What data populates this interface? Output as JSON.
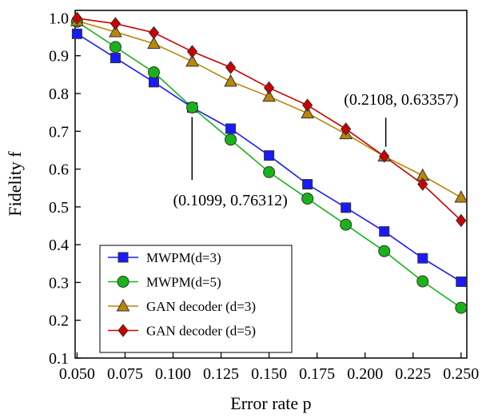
{
  "chart_data": {
    "type": "line",
    "xlabel": "Error rate p",
    "ylabel": "Fidelity f",
    "xlim": [
      0.049,
      0.253
    ],
    "ylim": [
      0.1,
      1.02
    ],
    "xticks": [
      0.05,
      0.075,
      0.1,
      0.125,
      0.15,
      0.175,
      0.2,
      0.225,
      0.25
    ],
    "xtick_labels": [
      "0.050",
      "0.075",
      "0.100",
      "0.125",
      "0.150",
      "0.175",
      "0.200",
      "0.225",
      "0.250"
    ],
    "yticks": [
      0.1,
      0.2,
      0.3,
      0.4,
      0.5,
      0.6,
      0.7,
      0.8,
      0.9,
      1.0
    ],
    "ytick_labels": [
      "0.1",
      "0.2",
      "0.3",
      "0.4",
      "0.5",
      "0.6",
      "0.7",
      "0.8",
      "0.9",
      "1.0"
    ],
    "grid": false,
    "legend_position": "bottom-left",
    "x": [
      0.05,
      0.07,
      0.09,
      0.11,
      0.13,
      0.15,
      0.17,
      0.19,
      0.21,
      0.23,
      0.25
    ],
    "series": [
      {
        "name": "MWPM(d=3)",
        "color": "#1a1aff",
        "marker": "square",
        "values": [
          0.958,
          0.894,
          0.83,
          0.763,
          0.707,
          0.636,
          0.56,
          0.498,
          0.435,
          0.364,
          0.302
        ]
      },
      {
        "name": "MWPM(d=5)",
        "color": "#19b319",
        "marker": "circle",
        "values": [
          0.99,
          0.923,
          0.856,
          0.763,
          0.678,
          0.592,
          0.522,
          0.453,
          0.383,
          0.303,
          0.233
        ]
      },
      {
        "name": "GAN decoder (d=3)",
        "color": "#b8860b",
        "marker": "triangle",
        "values": [
          0.992,
          0.963,
          0.932,
          0.885,
          0.832,
          0.792,
          0.748,
          0.693,
          0.634,
          0.583,
          0.525
        ]
      },
      {
        "name": "GAN decoder (d=5)",
        "color": "#cc0000",
        "marker": "diamond",
        "values": [
          0.999,
          0.985,
          0.961,
          0.911,
          0.869,
          0.815,
          0.769,
          0.706,
          0.634,
          0.56,
          0.464
        ]
      }
    ],
    "annotations": [
      {
        "text": "(0.1099, 0.76312)",
        "point": [
          0.1099,
          0.76312
        ],
        "label_anchor": [
          0.1,
          0.567
        ]
      },
      {
        "text": "(0.2108, 0.63357)",
        "point": [
          0.2108,
          0.63357
        ],
        "label_anchor": [
          0.189,
          0.77
        ]
      }
    ]
  }
}
